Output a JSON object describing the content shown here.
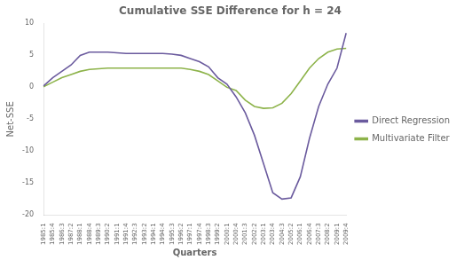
{
  "chart_data": {
    "type": "line",
    "title": "Cumulative SSE Difference for h = 24",
    "x_label": "Quarters",
    "y_label": "Net-SSE",
    "categories": [
      "1985:1",
      "1985:4",
      "1986:3",
      "1987:2",
      "1988:1",
      "1988:4",
      "1989:3",
      "1990:2",
      "1991:1",
      "1991:4",
      "1992:3",
      "1993:2",
      "1994:1",
      "1994:4",
      "1995:3",
      "1996:2",
      "1997:1",
      "1997:4",
      "1998:3",
      "1999:2",
      "2000:1",
      "2000:4",
      "2001:3",
      "2002:2",
      "2003:1",
      "2003:4",
      "2004:3",
      "2005:2",
      "2006:1",
      "2006:4",
      "2007:3",
      "2008:2",
      "2009:1",
      "2009:4"
    ],
    "series": [
      {
        "name": "Direct Regression",
        "color": "#6B5B9E",
        "values": [
          0.2,
          1.5,
          2.5,
          3.5,
          5.0,
          5.5,
          5.5,
          5.5,
          5.4,
          5.3,
          5.3,
          5.3,
          5.3,
          5.3,
          5.2,
          5.0,
          4.5,
          4.0,
          3.2,
          1.5,
          0.5,
          -1.5,
          -4.0,
          -7.5,
          -12.0,
          -16.5,
          -17.5,
          -17.3,
          -14.0,
          -8.0,
          -3.0,
          0.5,
          3.0,
          8.5
        ]
      },
      {
        "name": "Multivariate Filter",
        "color": "#8DB34A",
        "values": [
          0.1,
          0.8,
          1.5,
          2.0,
          2.5,
          2.8,
          2.9,
          3.0,
          3.0,
          3.0,
          3.0,
          3.0,
          3.0,
          3.0,
          3.0,
          3.0,
          2.8,
          2.5,
          2.0,
          1.0,
          0.0,
          -0.5,
          -2.0,
          -3.0,
          -3.3,
          -3.2,
          -2.5,
          -1.0,
          1.0,
          3.0,
          4.5,
          5.5,
          6.0,
          6.1
        ]
      }
    ],
    "ylim": [
      -20,
      10
    ],
    "yticks": [
      -20,
      -15,
      -10,
      -5,
      0,
      5,
      10
    ],
    "grid": false,
    "legend": "right"
  }
}
